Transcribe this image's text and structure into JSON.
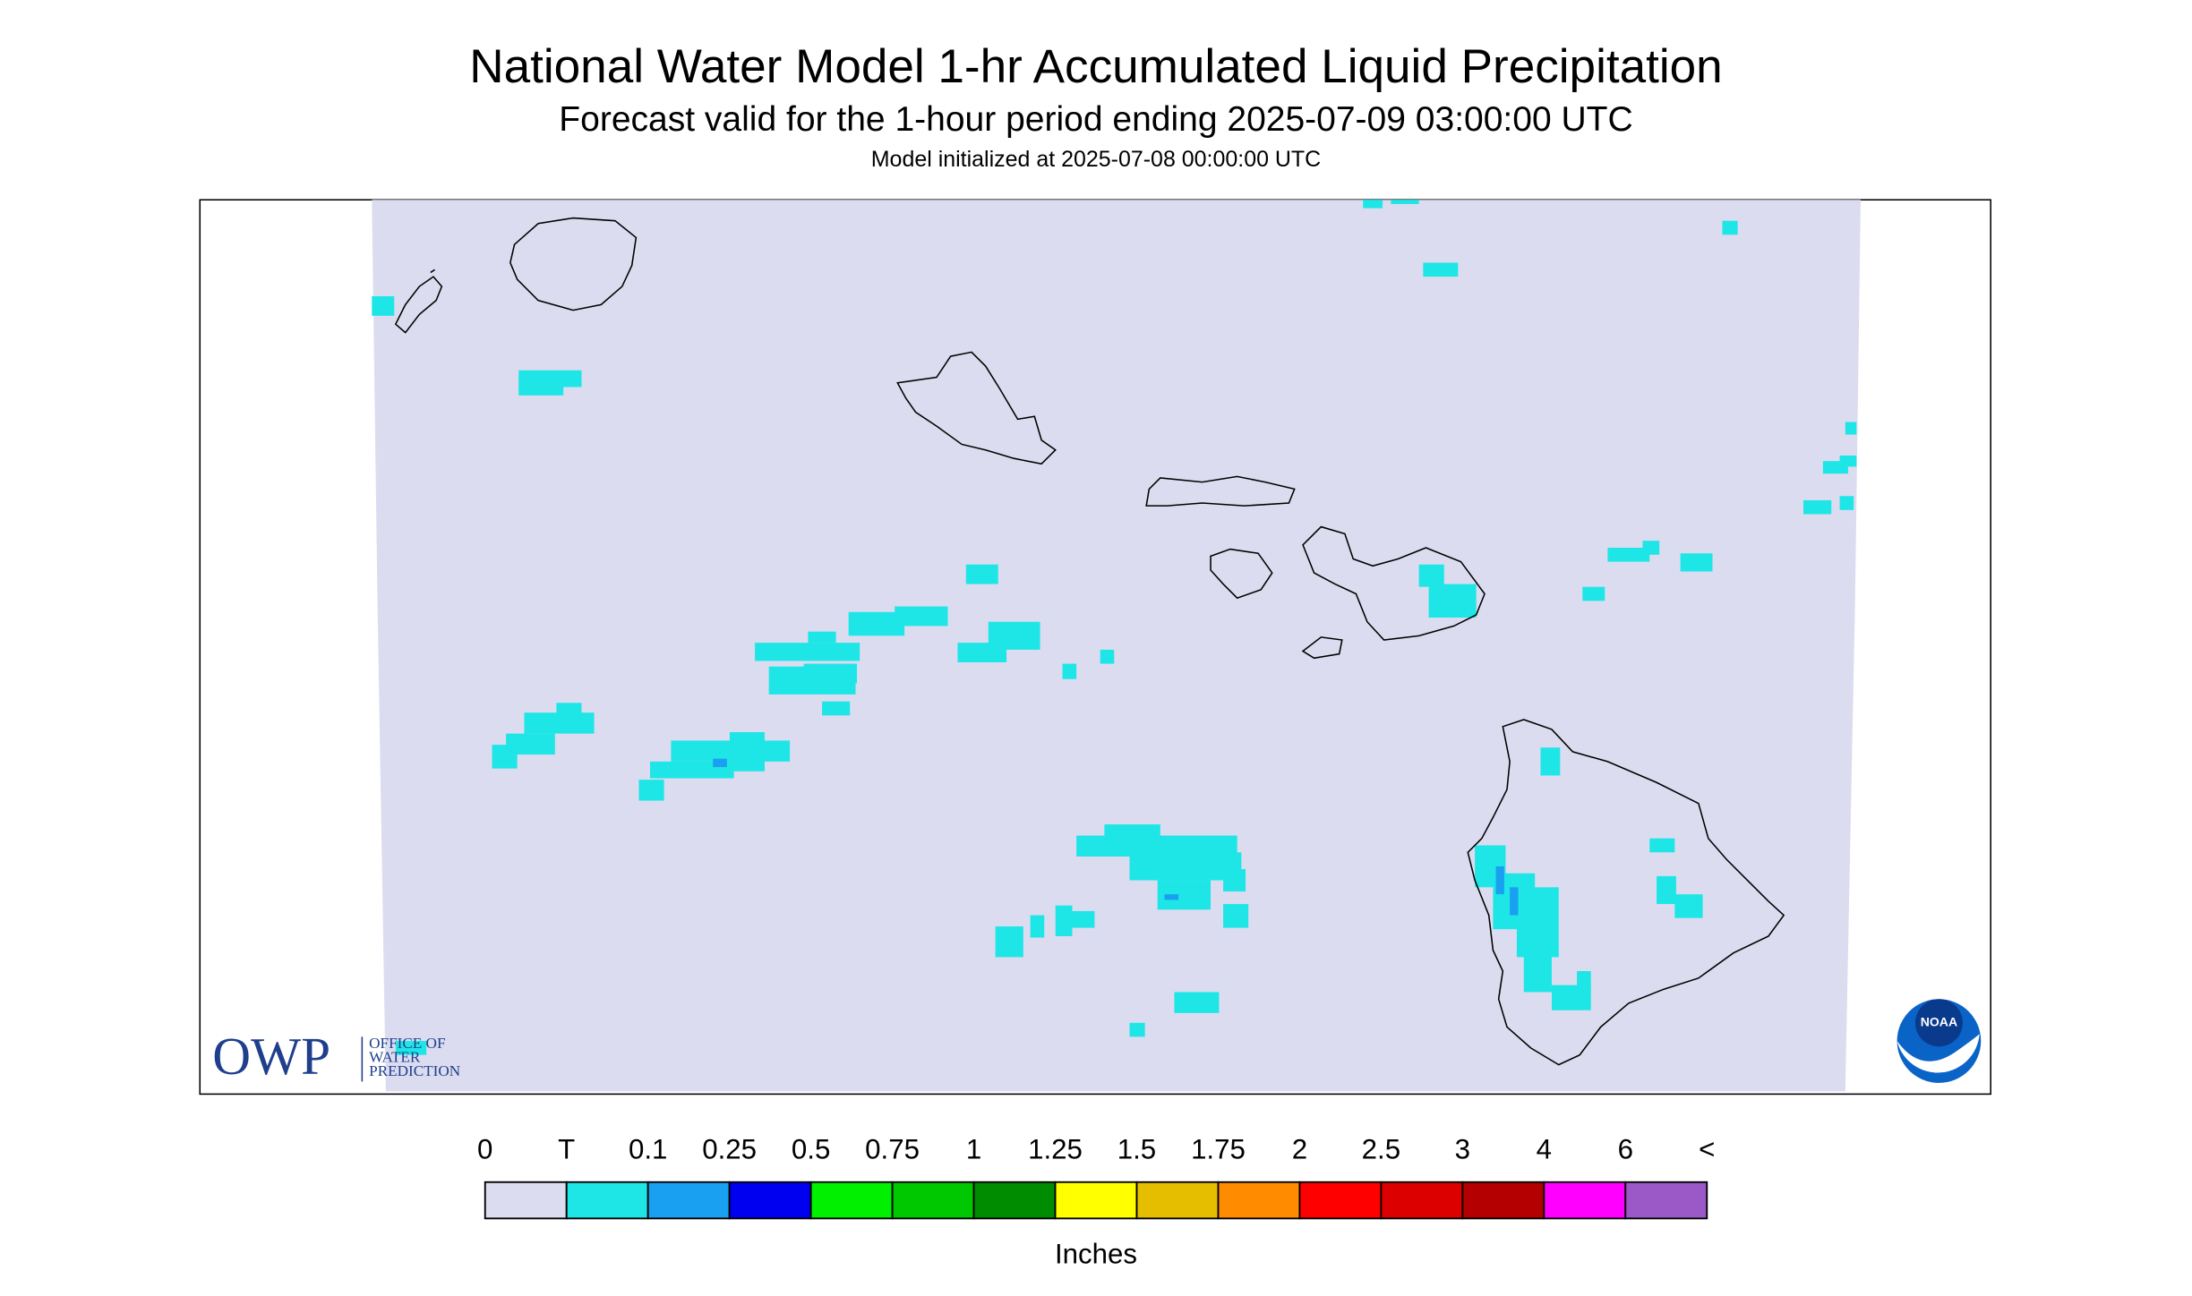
{
  "title": "National Water Model 1-hr Accumulated Liquid Precipitation",
  "subtitle": "Forecast valid for the 1-hour period ending 2025-07-09 03:00:00 UTC",
  "initialized": "Model initialized at 2025-07-08 00:00:00 UTC",
  "legend": {
    "labels": [
      "0",
      "T",
      "0.1",
      "0.25",
      "0.5",
      "0.75",
      "1",
      "1.25",
      "1.5",
      "1.75",
      "2",
      "2.5",
      "3",
      "4",
      "6",
      "<"
    ],
    "colors": [
      "#dcdcf0",
      "#1ee6e6",
      "#1aa0f0",
      "#0000f0",
      "#00f000",
      "#00c800",
      "#008c00",
      "#ffff00",
      "#e6be00",
      "#ff8c00",
      "#ff0000",
      "#dc0000",
      "#b40000",
      "#ff00ff",
      "#9b59c8"
    ],
    "unit": "Inches"
  },
  "logos": {
    "owp": "OWP",
    "owp_name": [
      "OFFICE OF",
      "WATER",
      "PREDICTION"
    ],
    "noaa": "NOAA"
  }
}
